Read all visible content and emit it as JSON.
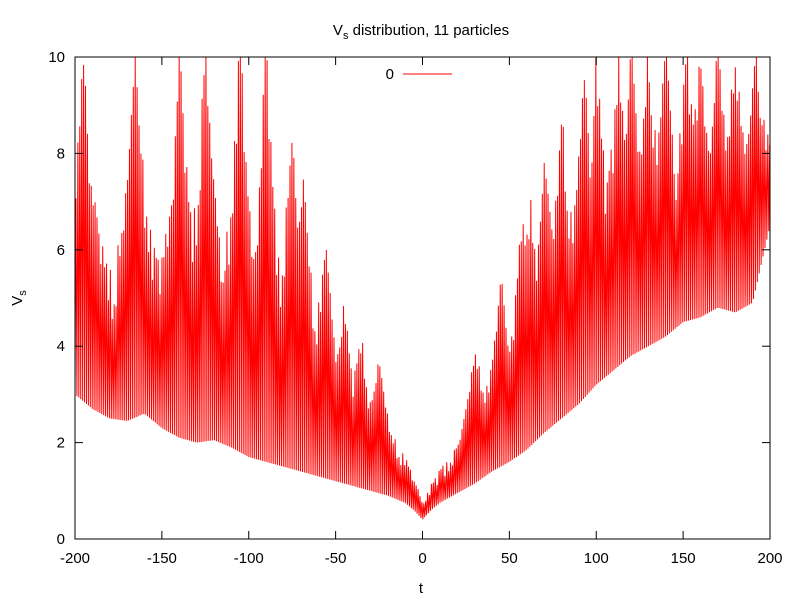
{
  "chart_data": {
    "type": "line",
    "title": "V",
    "title_subscript": "s",
    "title_suffix": " distribution, 11 particles",
    "xlabel": "t",
    "ylabel": "V",
    "ylabel_subscript": "s",
    "xlim": [
      -200,
      200
    ],
    "ylim": [
      0,
      10
    ],
    "x_ticks": [
      -200,
      -150,
      -100,
      -50,
      0,
      50,
      100,
      150,
      200
    ],
    "y_ticks": [
      0,
      2,
      4,
      6,
      8,
      10
    ],
    "grid": false,
    "legend_position": "top-center",
    "series": [
      {
        "name": "0",
        "color": "#ff0000",
        "baseline_envelope": {
          "x": [
            -200,
            -190,
            -180,
            -170,
            -160,
            -150,
            -140,
            -130,
            -120,
            -110,
            -100,
            -90,
            -80,
            -70,
            -60,
            -50,
            -40,
            -30,
            -20,
            -10,
            -5,
            0,
            5,
            10,
            20,
            30,
            40,
            50,
            60,
            70,
            80,
            90,
            100,
            110,
            120,
            130,
            140,
            150,
            160,
            170,
            180,
            190,
            200
          ],
          "y": [
            3.0,
            2.7,
            2.5,
            2.45,
            2.6,
            2.3,
            2.1,
            2.0,
            2.05,
            1.9,
            1.7,
            1.6,
            1.5,
            1.4,
            1.3,
            1.2,
            1.1,
            1.0,
            0.9,
            0.75,
            0.6,
            0.4,
            0.6,
            0.75,
            0.95,
            1.15,
            1.4,
            1.6,
            1.85,
            2.2,
            2.5,
            2.8,
            3.2,
            3.5,
            3.8,
            4.0,
            4.2,
            4.5,
            4.6,
            4.8,
            4.7,
            4.9,
            6.5
          ]
        },
        "peak_envelope": {
          "x": [
            -200,
            -190,
            -180,
            -170,
            -160,
            -150,
            -140,
            -130,
            -120,
            -110,
            -100,
            -90,
            -80,
            -70,
            -60,
            -50,
            -40,
            -30,
            -20,
            -10,
            0,
            10,
            20,
            30,
            40,
            50,
            60,
            70,
            80,
            90,
            100,
            110,
            120,
            130,
            140,
            150,
            160,
            170,
            180,
            190,
            200
          ],
          "y": [
            10,
            10,
            10,
            10,
            10,
            10,
            10,
            10,
            10,
            10,
            10,
            10,
            8.8,
            7.6,
            6.6,
            5.3,
            4.4,
            3.8,
            3.4,
            3.1,
            1.7,
            2.6,
            3.2,
            3.8,
            4.8,
            5.8,
            6.8,
            7.8,
            8.6,
            9.3,
            10,
            10,
            10,
            10,
            10,
            10,
            10,
            10,
            10,
            10,
            10
          ]
        },
        "oscillation_period": 1.1,
        "beat_resonances_t": [
          -195,
          -165,
          -140,
          -125,
          -105,
          -90,
          -75,
          -68,
          -55,
          -45,
          -35,
          -25,
          30,
          45,
          57,
          62,
          70,
          80,
          93,
          100,
          113,
          120,
          130,
          140,
          152,
          160,
          170,
          180,
          192
        ]
      }
    ]
  }
}
